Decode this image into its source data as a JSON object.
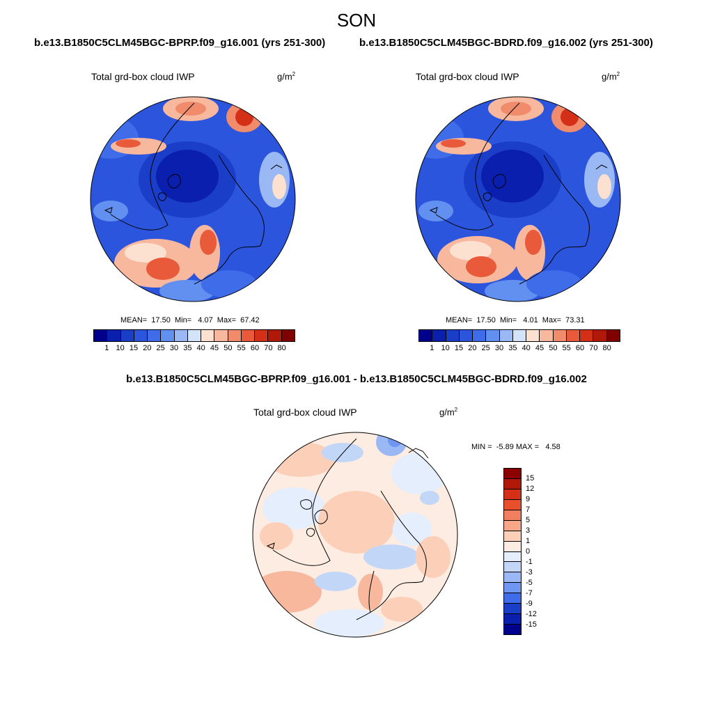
{
  "figure": {
    "season": "SON",
    "case1_header": "b.e13.B1850C5CLM45BGC-BPRP.f09_g16.001 (yrs 251-300)",
    "case2_header": "b.e13.B1850C5CLM45BGC-BDRD.f09_g16.002 (yrs 251-300)",
    "diff_header": "b.e13.B1850C5CLM45BGC-BPRP.f09_g16.001 - b.e13.B1850C5CLM45BGC-BDRD.f09_g16.002"
  },
  "panels": {
    "case1": {
      "var_title": "Total grd-box cloud IWP",
      "units": "g/m",
      "units_exp": "2",
      "stats": "MEAN=  17.50  Min=   4.07  Max=  67.42"
    },
    "case2": {
      "var_title": "Total grd-box cloud IWP",
      "units": "g/m",
      "units_exp": "2",
      "stats": "MEAN=  17.50  Min=   4.01  Max=  73.31"
    },
    "diff": {
      "var_title": "Total grd-box cloud IWP",
      "units": "g/m",
      "units_exp": "2",
      "stats": "MIN =  -5.89 MAX =   4.58"
    }
  },
  "colorbars": {
    "abs": {
      "labels": [
        "1",
        "10",
        "15",
        "20",
        "25",
        "30",
        "35",
        "40",
        "45",
        "50",
        "55",
        "60",
        "70",
        "80"
      ],
      "colors": [
        "#00008c",
        "#0b1fae",
        "#1a3ec8",
        "#2b55dc",
        "#3f6ce8",
        "#6290f0",
        "#9ab8f4",
        "#d4e4f8",
        "#fce0d0",
        "#f8b89e",
        "#f08c6c",
        "#e85a3a",
        "#d43018",
        "#b01808",
        "#800000"
      ]
    },
    "diff": {
      "labels": [
        "15",
        "12",
        "9",
        "7",
        "5",
        "3",
        "1",
        "0",
        "-1",
        "-3",
        "-5",
        "-7",
        "-9",
        "-12",
        "-15"
      ],
      "colors": [
        "#8c0000",
        "#b01808",
        "#d43018",
        "#e8502c",
        "#f08060",
        "#f8a888",
        "#fcd0b8",
        "#fcece2",
        "#e4eefc",
        "#c2d6f8",
        "#9ab8f4",
        "#6f96f0",
        "#3f6ce8",
        "#1a3ec8",
        "#0b1fae",
        "#00008c"
      ]
    }
  }
}
